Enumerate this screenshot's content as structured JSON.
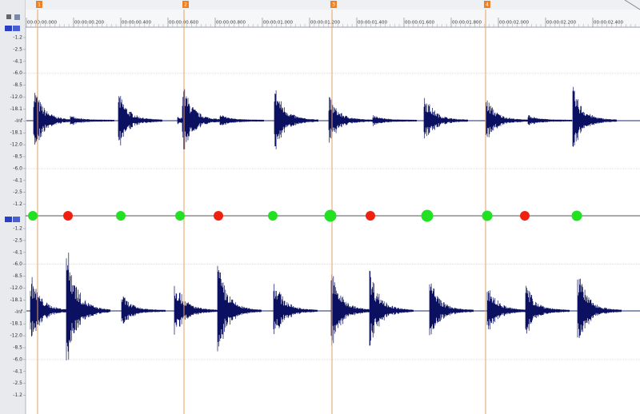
{
  "ruler": {
    "labels": [
      "00:00:00.000",
      "00:00:00.200",
      "00:00:00.400",
      "00:00:00.600",
      "00:00:00.800",
      "00:00:01.000",
      "00:00:01.200",
      "00:00:01.400",
      "00:00:01.600",
      "00:00:01.800",
      "00:00:02.000",
      "00:00:02.200",
      "00:00:02.400"
    ]
  },
  "markers": [
    "1",
    "2",
    "3",
    "4"
  ],
  "channels": [
    {
      "scale": [
        "-1.2",
        "-2.5",
        "-4.1",
        "-6.0",
        "-8.5",
        "-12.0",
        "-18.1",
        "-Inf",
        "-18.1",
        "-12.0",
        "-8.5",
        "-6.0",
        "-4.1",
        "-2.5",
        "-1.2"
      ]
    },
    {
      "scale": [
        "-1.2",
        "-2.5",
        "-4.1",
        "-6.0",
        "-8.5",
        "-12.0",
        "-18.1",
        "-Inf",
        "-18.1",
        "-12.0",
        "-8.5",
        "-6.0",
        "-4.1",
        "-2.5",
        "-1.2"
      ]
    }
  ]
}
